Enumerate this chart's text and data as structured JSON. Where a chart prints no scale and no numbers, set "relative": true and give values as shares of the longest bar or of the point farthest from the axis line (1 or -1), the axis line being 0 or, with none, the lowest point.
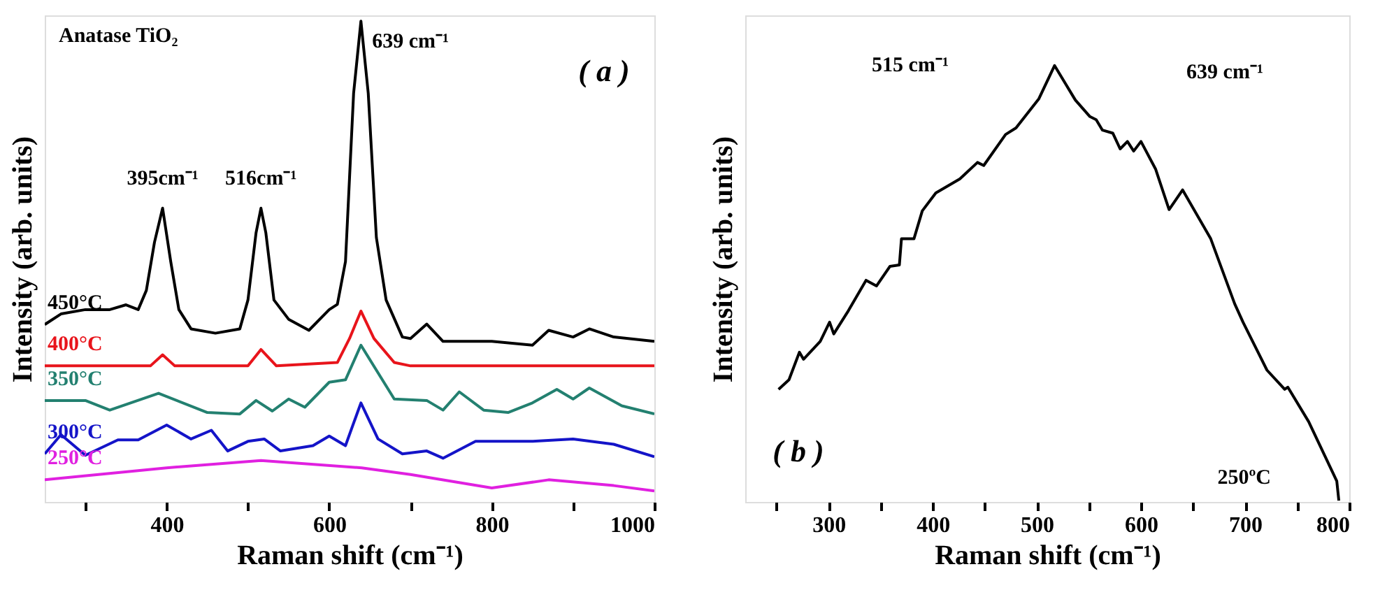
{
  "chart_data": [
    {
      "type": "line",
      "relative": true,
      "xlabel": "Raman shift (cm⁻¹)",
      "ylabel": "Intensity (arb. units)",
      "xlim": [
        250,
        1000
      ],
      "xticks": [
        {
          "value": 300,
          "label": null
        },
        400,
        {
          "value": 500,
          "label": null
        },
        600,
        {
          "value": 700,
          "label": null
        },
        800,
        {
          "value": 900,
          "label": null
        },
        1000
      ],
      "annotations": [
        "Anatase TiO₂",
        "( a )",
        {
          "text": "395cm⁻¹",
          "x": 395,
          "y": 0.611
        },
        {
          "text": "516cm⁻¹",
          "x": 516,
          "y": 0.611
        },
        {
          "text": "639 cm⁻¹",
          "x": 639,
          "y": 1
        }
      ],
      "series": [
        {
          "name": "450°C",
          "color": "#000000",
          "x": [
            250,
            270,
            300,
            330,
            350,
            365,
            375,
            385,
            395,
            405,
            415,
            430,
            460,
            490,
            500,
            510,
            516,
            522,
            532,
            550,
            575,
            600,
            610,
            620,
            630,
            639,
            648,
            658,
            670,
            690,
            700,
            720,
            740,
            800,
            850,
            870,
            900,
            920,
            950,
            1000
          ],
          "values": [
            0.369,
            0.391,
            0.4,
            0.4,
            0.41,
            0.4,
            0.44,
            0.54,
            0.611,
            0.5,
            0.4,
            0.36,
            0.351,
            0.36,
            0.42,
            0.56,
            0.611,
            0.56,
            0.42,
            0.38,
            0.357,
            0.4,
            0.411,
            0.5,
            0.85,
            1,
            0.85,
            0.55,
            0.42,
            0.343,
            0.34,
            0.37,
            0.334,
            0.334,
            0.326,
            0.357,
            0.343,
            0.36,
            0.343,
            0.334
          ]
        },
        {
          "name": "400°C",
          "color": "#e8141b",
          "x": [
            250,
            380,
            395,
            410,
            500,
            516,
            535,
            610,
            625,
            639,
            655,
            680,
            700,
            1000
          ],
          "values": [
            0.283,
            0.283,
            0.306,
            0.283,
            0.283,
            0.317,
            0.283,
            0.29,
            0.34,
            0.397,
            0.34,
            0.29,
            0.283,
            0.283
          ]
        },
        {
          "name": "350°C",
          "color": "#238070",
          "x": [
            250,
            300,
            330,
            390,
            450,
            490,
            510,
            530,
            550,
            570,
            600,
            620,
            639,
            680,
            720,
            740,
            760,
            790,
            820,
            850,
            880,
            900,
            920,
            960,
            1000
          ],
          "values": [
            0.211,
            0.211,
            0.191,
            0.226,
            0.186,
            0.183,
            0.211,
            0.189,
            0.214,
            0.197,
            0.249,
            0.254,
            0.326,
            0.214,
            0.211,
            0.191,
            0.229,
            0.191,
            0.186,
            0.206,
            0.234,
            0.214,
            0.237,
            0.2,
            0.183
          ]
        },
        {
          "name": "300°C",
          "color": "#1414c8",
          "x": [
            250,
            270,
            300,
            340,
            365,
            400,
            430,
            455,
            475,
            500,
            520,
            540,
            580,
            600,
            620,
            639,
            660,
            690,
            720,
            740,
            780,
            850,
            900,
            950,
            1000
          ],
          "values": [
            0.1,
            0.14,
            0.097,
            0.129,
            0.129,
            0.16,
            0.131,
            0.149,
            0.106,
            0.126,
            0.131,
            0.106,
            0.117,
            0.137,
            0.117,
            0.206,
            0.131,
            0.1,
            0.106,
            0.091,
            0.126,
            0.126,
            0.131,
            0.12,
            0.094
          ]
        },
        {
          "name": "250°C",
          "color": "#e020e0",
          "x": [
            250,
            400,
            516,
            640,
            700,
            800,
            870,
            950,
            1000
          ],
          "values": [
            0.046,
            0.071,
            0.086,
            0.071,
            0.057,
            0.029,
            0.046,
            0.034,
            0.023
          ]
        }
      ]
    },
    {
      "type": "line",
      "relative": true,
      "xlabel": "Raman shift (cm⁻¹)",
      "ylabel": "Intensity (arb. units)",
      "xlim": [
        220,
        800
      ],
      "xticks": [
        {
          "value": 250,
          "label": null
        },
        300,
        {
          "value": 350,
          "label": null
        },
        400,
        {
          "value": 450,
          "label": null
        },
        500,
        {
          "value": 550,
          "label": null
        },
        600,
        {
          "value": 650,
          "label": null
        },
        700,
        {
          "value": 750,
          "label": null
        },
        800
      ],
      "annotations": [
        "( b )",
        "250ºC",
        "515 cm⁻¹",
        "639 cm⁻¹"
      ],
      "series": [
        {
          "color": "#000000",
          "x": [
            252,
            262,
            272,
            276,
            292,
            301,
            305,
            319,
            336,
            346,
            359,
            368,
            370,
            382,
            390,
            403,
            426,
            443,
            449,
            470,
            480,
            502,
            517,
            537,
            551,
            557,
            563,
            573,
            580,
            587,
            593,
            600,
            614,
            627,
            640,
            667,
            690,
            698,
            721,
            738,
            741,
            761,
            788,
            790
          ],
          "values": [
            0.258,
            0.28,
            0.343,
            0.327,
            0.368,
            0.412,
            0.385,
            0.438,
            0.508,
            0.495,
            0.54,
            0.543,
            0.603,
            0.603,
            0.667,
            0.708,
            0.74,
            0.778,
            0.771,
            0.842,
            0.857,
            0.924,
            1,
            0.921,
            0.883,
            0.876,
            0.852,
            0.845,
            0.809,
            0.826,
            0.804,
            0.826,
            0.763,
            0.67,
            0.715,
            0.603,
            0.454,
            0.412,
            0.302,
            0.258,
            0.263,
            0.184,
            0.048,
            0.003
          ]
        }
      ]
    }
  ]
}
